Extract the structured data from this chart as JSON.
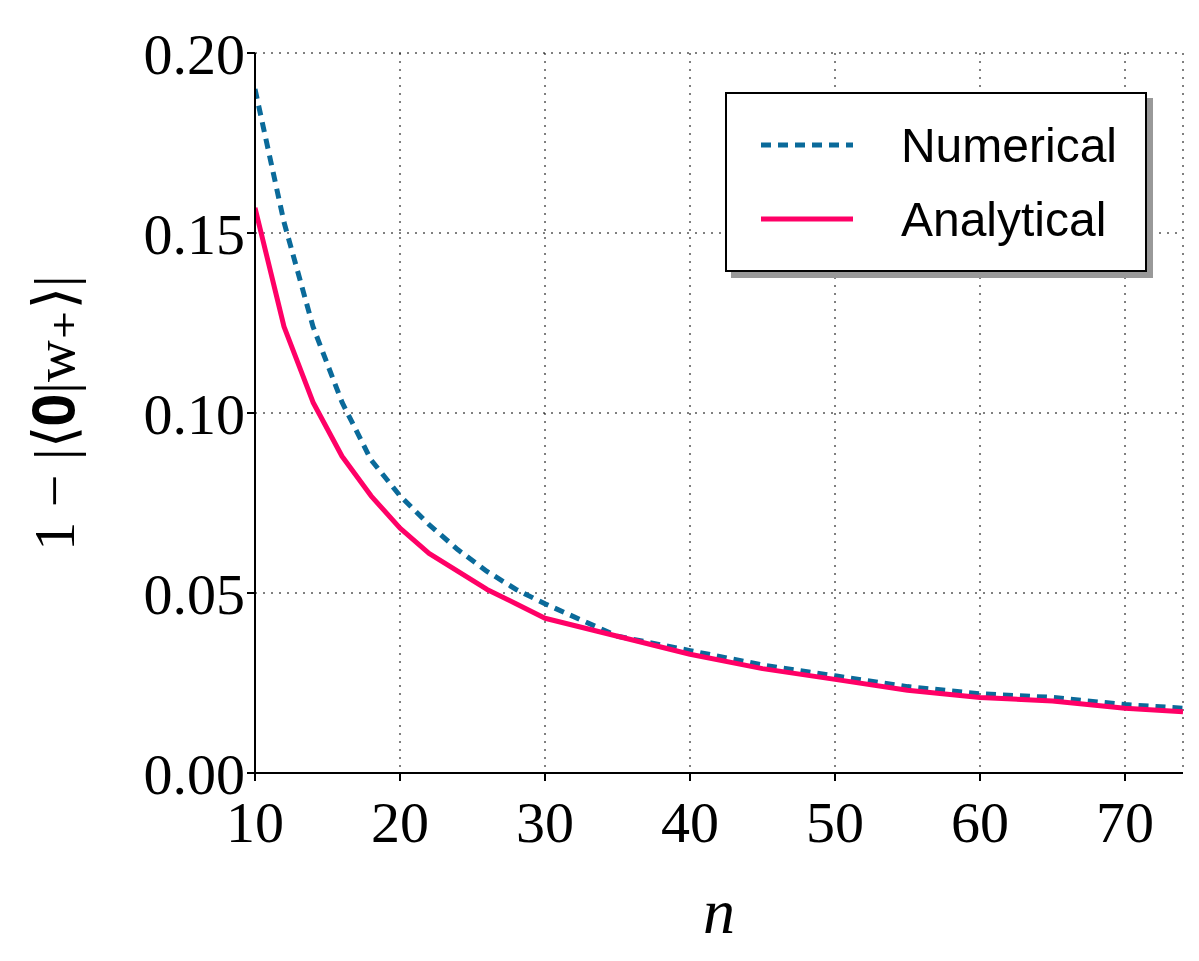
{
  "chart_data": {
    "type": "line",
    "xlabel": "n",
    "ylabel": "1 − |⟨𝟎|w₊⟩|",
    "xlim": [
      10,
      74
    ],
    "xticks": [
      10,
      20,
      30,
      40,
      50,
      60,
      70
    ],
    "ylim": [
      0,
      0.2
    ],
    "yticks": [
      {
        "value": 0,
        "label": "0.00"
      },
      {
        "value": 0.05,
        "label": "0.05"
      },
      {
        "value": 0.1,
        "label": "0.10"
      },
      {
        "value": 0.15,
        "label": "0.15"
      },
      {
        "value": 0.2,
        "label": "0.20"
      }
    ],
    "grid": true,
    "legend": "top right",
    "series": [
      {
        "name": "Numerical",
        "color": "#0a6a9a",
        "line_style": "dashed",
        "x": [
          10,
          12,
          14,
          16,
          18,
          20,
          22,
          24,
          26,
          28,
          30,
          35,
          40,
          45,
          50,
          55,
          60,
          65,
          70,
          74
        ],
        "values": [
          0.19,
          0.153,
          0.124,
          0.103,
          0.087,
          0.077,
          0.069,
          0.062,
          0.056,
          0.051,
          0.047,
          0.038,
          0.034,
          0.03,
          0.027,
          0.024,
          0.022,
          0.021,
          0.019,
          0.018
        ]
      },
      {
        "name": "Analytical",
        "color": "#ff0066",
        "line_style": "solid",
        "x": [
          10,
          12,
          14,
          16,
          18,
          20,
          22,
          24,
          26,
          28,
          30,
          35,
          40,
          45,
          50,
          55,
          60,
          65,
          70,
          74
        ],
        "values": [
          0.157,
          0.124,
          0.103,
          0.088,
          0.077,
          0.068,
          0.061,
          0.056,
          0.051,
          0.047,
          0.043,
          0.038,
          0.033,
          0.029,
          0.026,
          0.023,
          0.021,
          0.02,
          0.018,
          0.017
        ]
      }
    ]
  }
}
